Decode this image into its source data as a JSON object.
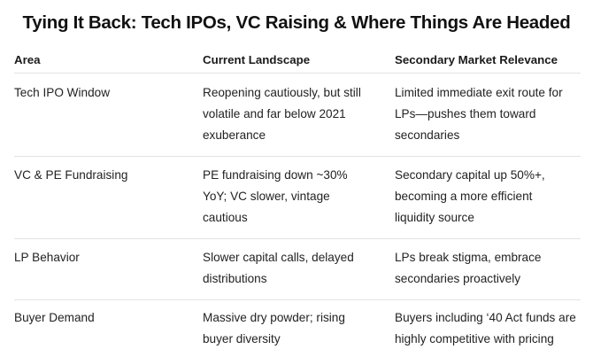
{
  "title": "Tying It Back: Tech IPOs, VC Raising & Where Things Are Headed",
  "table": {
    "headers": [
      "Area",
      "Current Landscape",
      "Secondary Market Relevance"
    ],
    "rows": [
      {
        "area": [
          "Tech IPO Window"
        ],
        "landscape": [
          "Reopening cautiously, but still",
          "volatile and far below 2021",
          "exuberance"
        ],
        "relevance": [
          "Limited immediate exit route for",
          "LPs—pushes them toward",
          "secondaries"
        ]
      },
      {
        "area": [
          "VC & PE Fundraising"
        ],
        "landscape": [
          "PE fundraising down ~30%",
          "YoY; VC slower, vintage",
          "cautious"
        ],
        "relevance": [
          "Secondary capital up 50%+,",
          "becoming a more efficient",
          "liquidity source"
        ]
      },
      {
        "area": [
          "LP Behavior"
        ],
        "landscape": [
          "Slower capital calls, delayed",
          "distributions"
        ],
        "relevance": [
          "LPs break stigma, embrace",
          "secondaries proactively"
        ]
      },
      {
        "area": [
          "Buyer Demand"
        ],
        "landscape": [
          "Massive dry powder; rising",
          "buyer diversity"
        ],
        "relevance": [
          "Buyers including ‘40 Act funds are",
          "highly competitive with pricing"
        ]
      }
    ]
  }
}
